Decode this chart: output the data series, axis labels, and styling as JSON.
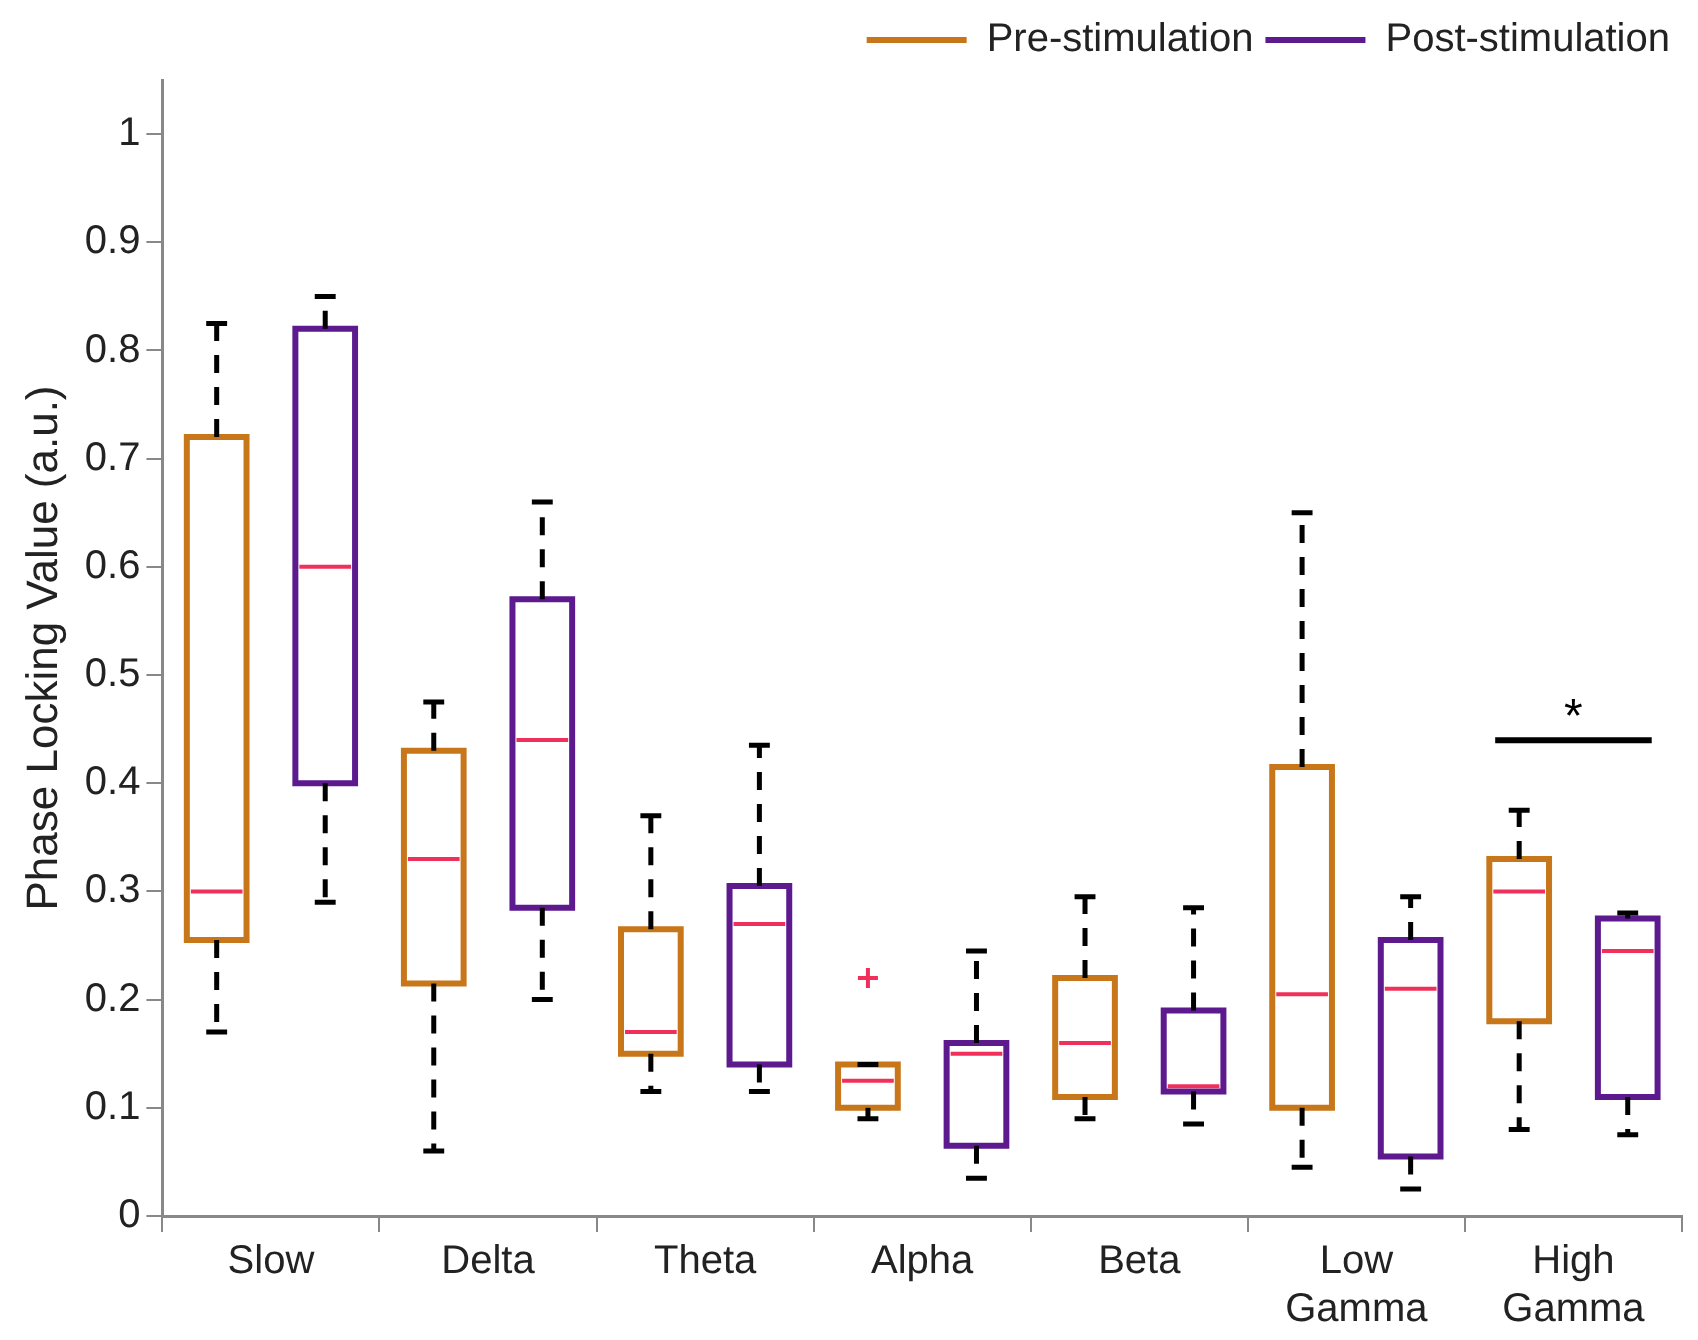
{
  "chart_data": {
    "type": "box",
    "ylabel": "Phase Locking Value (a.u.)",
    "categories": [
      "Slow",
      "Delta",
      "Theta",
      "Alpha",
      "Beta",
      "Low Gamma",
      "High Gamma"
    ],
    "ylim": [
      0,
      1.05
    ],
    "yticks": [
      0,
      0.1,
      0.2,
      0.3,
      0.4,
      0.5,
      0.6,
      0.7,
      0.8,
      0.9,
      1
    ],
    "grid": false,
    "legend": "top right",
    "annotations": [
      "*"
    ],
    "series": [
      {
        "name": "Pre-stimulation",
        "color": "#c8761a",
        "boxes": [
          {
            "low": 0.17,
            "q1": 0.255,
            "median": 0.3,
            "q3": 0.72,
            "high": 0.825
          },
          {
            "low": 0.06,
            "q1": 0.215,
            "median": 0.33,
            "q3": 0.43,
            "high": 0.475
          },
          {
            "low": 0.115,
            "q1": 0.15,
            "median": 0.17,
            "q3": 0.265,
            "high": 0.37
          },
          {
            "low": 0.09,
            "q1": 0.1,
            "median": 0.125,
            "q3": 0.14,
            "high": 0.14,
            "outliers": [
              0.22
            ]
          },
          {
            "low": 0.09,
            "q1": 0.11,
            "median": 0.16,
            "q3": 0.22,
            "high": 0.295
          },
          {
            "low": 0.045,
            "q1": 0.1,
            "median": 0.205,
            "q3": 0.415,
            "high": 0.65
          },
          {
            "low": 0.08,
            "q1": 0.18,
            "median": 0.3,
            "q3": 0.33,
            "high": 0.375
          }
        ]
      },
      {
        "name": "Post-stimulation",
        "color": "#5c1a8e",
        "boxes": [
          {
            "low": 0.29,
            "q1": 0.4,
            "median": 0.6,
            "q3": 0.82,
            "high": 0.85
          },
          {
            "low": 0.2,
            "q1": 0.285,
            "median": 0.44,
            "q3": 0.57,
            "high": 0.66
          },
          {
            "low": 0.115,
            "q1": 0.14,
            "median": 0.27,
            "q3": 0.305,
            "high": 0.435
          },
          {
            "low": 0.035,
            "q1": 0.065,
            "median": 0.15,
            "q3": 0.16,
            "high": 0.245
          },
          {
            "low": 0.085,
            "q1": 0.115,
            "median": 0.12,
            "q3": 0.19,
            "high": 0.285
          },
          {
            "low": 0.025,
            "q1": 0.055,
            "median": 0.21,
            "q3": 0.255,
            "high": 0.295
          },
          {
            "low": 0.075,
            "q1": 0.11,
            "median": 0.245,
            "q3": 0.275,
            "high": 0.28
          }
        ]
      }
    ]
  }
}
